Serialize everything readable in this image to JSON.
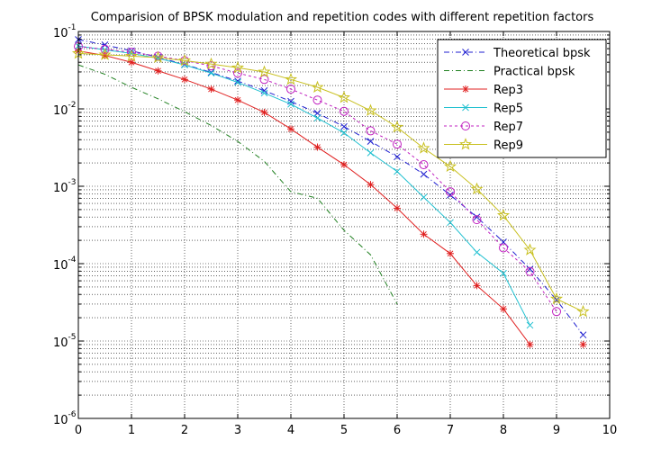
{
  "chart_data": {
    "type": "line",
    "title": "Comparision of BPSK modulation and repetition codes with different repetition factors",
    "xlabel": "",
    "ylabel": "",
    "xlim": [
      0,
      10
    ],
    "ylim": [
      1e-06,
      0.1
    ],
    "yscale": "log",
    "grid": true,
    "legend_position": "top-right",
    "x_ticks": [
      0,
      1,
      2,
      3,
      4,
      5,
      6,
      7,
      8,
      9,
      10
    ],
    "y_ticks": [
      {
        "value": 0.1,
        "base": "10",
        "exp": "-1"
      },
      {
        "value": 0.01,
        "base": "10",
        "exp": "-2"
      },
      {
        "value": 0.001,
        "base": "10",
        "exp": "-3"
      },
      {
        "value": 0.0001,
        "base": "10",
        "exp": "-4"
      },
      {
        "value": 1e-05,
        "base": "10",
        "exp": "-5"
      },
      {
        "value": 1e-06,
        "base": "10",
        "exp": "-6"
      }
    ],
    "series": [
      {
        "name": "Theoretical bpsk",
        "color": "#1f1fd0",
        "dash": "6,3,1,3",
        "marker": "x",
        "x": [
          0,
          0.5,
          1,
          1.5,
          2,
          2.5,
          3,
          3.5,
          4,
          4.5,
          5,
          5.5,
          6,
          6.5,
          7,
          7.5,
          8,
          8.5,
          9,
          9.5
        ],
        "values": [
          0.0786,
          0.0671,
          0.0563,
          0.0464,
          0.0375,
          0.0296,
          0.0229,
          0.0172,
          0.0125,
          0.0088,
          0.0059,
          0.0038,
          0.0024,
          0.00143,
          0.00077,
          0.0004,
          0.00019,
          8.5e-05,
          3.4e-05,
          1.2e-05
        ]
      },
      {
        "name": "Practical bpsk",
        "color": "#208020",
        "dash": "6,3,1,3",
        "marker": "none",
        "x": [
          0,
          0.5,
          1,
          1.5,
          2,
          2.5,
          3,
          3.5,
          4,
          4.5,
          5,
          5.5,
          6
        ],
        "values": [
          0.037,
          0.028,
          0.019,
          0.0135,
          0.0092,
          0.0061,
          0.0038,
          0.0021,
          0.00085,
          0.0007,
          0.00027,
          0.00013,
          3e-05
        ]
      },
      {
        "name": "Rep3",
        "color": "#e02020",
        "dash": "",
        "marker": "star",
        "x": [
          0,
          0.5,
          1,
          1.5,
          2,
          2.5,
          3,
          3.5,
          4,
          4.5,
          5,
          5.5,
          6,
          6.5,
          7,
          7.5,
          8,
          8.5,
          9,
          9.5
        ],
        "values": [
          0.056,
          0.049,
          0.04,
          0.031,
          0.024,
          0.018,
          0.013,
          0.009,
          0.0055,
          0.0032,
          0.0019,
          0.00105,
          0.00052,
          0.00024,
          0.000135,
          5.2e-05,
          2.6e-05,
          9e-06,
          null,
          9e-06
        ]
      },
      {
        "name": "Rep5",
        "color": "#20c0d0",
        "dash": "",
        "marker": "x",
        "x": [
          0,
          0.5,
          1,
          1.5,
          2,
          2.5,
          3,
          3.5,
          4,
          4.5,
          5,
          5.5,
          6,
          6.5,
          7,
          7.5,
          8,
          8.5
        ],
        "values": [
          0.065,
          0.058,
          0.052,
          0.045,
          0.037,
          0.029,
          0.022,
          0.016,
          0.0115,
          0.0076,
          0.0049,
          0.0027,
          0.00155,
          0.00072,
          0.00034,
          0.00014,
          7.5e-05,
          1.6e-05
        ]
      },
      {
        "name": "Rep7",
        "color": "#c020c0",
        "dash": "3,3",
        "marker": "circle",
        "x": [
          0,
          0.5,
          1,
          1.5,
          2,
          2.5,
          3,
          3.5,
          4,
          4.5,
          5,
          5.5,
          6,
          6.5,
          7,
          7.5,
          8,
          8.5,
          9
        ],
        "values": [
          0.064,
          0.059,
          0.054,
          0.048,
          0.042,
          0.036,
          0.029,
          0.024,
          0.018,
          0.013,
          0.0093,
          0.0052,
          0.0035,
          0.0019,
          0.00085,
          0.00037,
          0.00016,
          7.9e-05,
          2.4e-05
        ]
      },
      {
        "name": "Rep9",
        "color": "#c8c020",
        "dash": "",
        "marker": "pentagram",
        "x": [
          0,
          0.5,
          1,
          1.5,
          2,
          2.5,
          3,
          3.5,
          4,
          4.5,
          5,
          5.5,
          6,
          6.5,
          7,
          7.5,
          8,
          8.5,
          9,
          9.5
        ],
        "values": [
          0.052,
          0.05,
          0.048,
          0.046,
          0.042,
          0.038,
          0.034,
          0.03,
          0.024,
          0.019,
          0.014,
          0.0095,
          0.0058,
          0.0031,
          0.0018,
          0.00092,
          0.00042,
          0.00015,
          3.5e-05,
          2.4e-05
        ]
      }
    ]
  }
}
